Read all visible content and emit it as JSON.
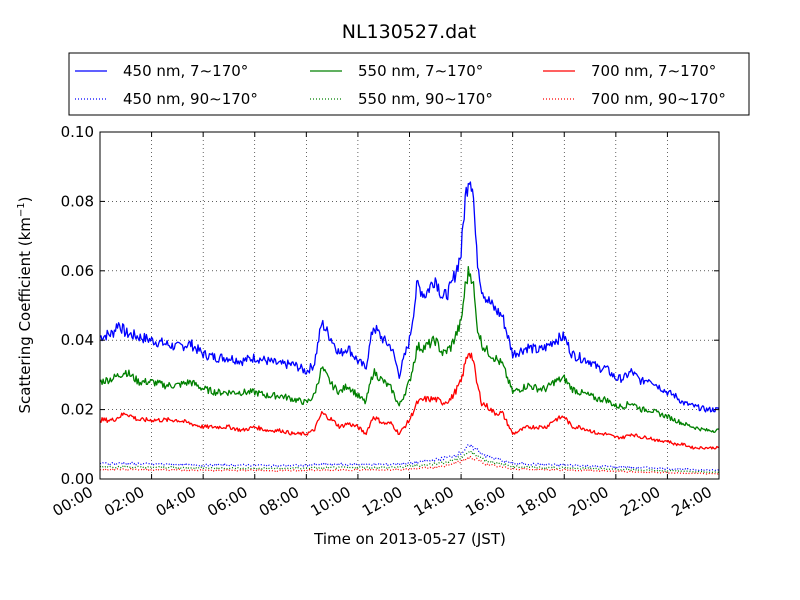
{
  "chart_data": {
    "type": "line",
    "title": "NL130527.dat",
    "xlabel": "Time on 2013-05-27 (JST)",
    "ylabel": "Scattering Coefficient (km",
    "ylabel_sup": "−1",
    "ylabel_close": ")",
    "xlim": [
      0,
      24
    ],
    "ylim": [
      0,
      0.1
    ],
    "x_unit": "hours (JST)",
    "x_ticks": [
      0,
      2,
      4,
      6,
      8,
      10,
      12,
      14,
      16,
      18,
      20,
      22,
      24
    ],
    "x_tick_labels": [
      "00:00",
      "02:00",
      "04:00",
      "06:00",
      "08:00",
      "10:00",
      "12:00",
      "14:00",
      "16:00",
      "18:00",
      "20:00",
      "22:00",
      "24:00"
    ],
    "y_ticks": [
      0,
      0.02,
      0.04,
      0.06,
      0.08,
      0.1
    ],
    "y_tick_labels": [
      "0.00",
      "0.02",
      "0.04",
      "0.06",
      "0.08",
      "0.10"
    ],
    "grid": true,
    "legend_placement": "top, above plot",
    "series": [
      {
        "name": "450 nm, 7∼170°",
        "color": "#0000ff",
        "style": "solid",
        "x": [
          0,
          0.5,
          0.7,
          1,
          1.5,
          2,
          2.5,
          3,
          3.5,
          4,
          4.5,
          5,
          5.5,
          6,
          6.5,
          7,
          7.5,
          8,
          8.3,
          8.6,
          9,
          9.3,
          9.6,
          10,
          10.3,
          10.6,
          11,
          11.3,
          11.6,
          12,
          12.3,
          12.6,
          13,
          13.3,
          13.6,
          14,
          14.15,
          14.3,
          14.45,
          14.6,
          14.8,
          15,
          15.3,
          15.6,
          16,
          16.3,
          16.6,
          17,
          17.3,
          17.6,
          18,
          18.3,
          18.6,
          19,
          19.3,
          19.6,
          20,
          20.3,
          20.6,
          21,
          21.3,
          21.6,
          22,
          22.3,
          22.6,
          23,
          23.5,
          24
        ],
        "y": [
          0.041,
          0.042,
          0.045,
          0.042,
          0.041,
          0.04,
          0.039,
          0.038,
          0.039,
          0.036,
          0.035,
          0.035,
          0.034,
          0.035,
          0.034,
          0.033,
          0.033,
          0.031,
          0.033,
          0.045,
          0.04,
          0.036,
          0.038,
          0.034,
          0.032,
          0.044,
          0.04,
          0.038,
          0.03,
          0.04,
          0.056,
          0.053,
          0.058,
          0.052,
          0.055,
          0.065,
          0.08,
          0.088,
          0.085,
          0.065,
          0.055,
          0.052,
          0.049,
          0.047,
          0.036,
          0.037,
          0.038,
          0.037,
          0.038,
          0.04,
          0.041,
          0.036,
          0.035,
          0.034,
          0.032,
          0.032,
          0.029,
          0.029,
          0.031,
          0.028,
          0.029,
          0.027,
          0.025,
          0.024,
          0.022,
          0.021,
          0.02,
          0.02
        ]
      },
      {
        "name": "550 nm, 7∼170°",
        "color": "#008000",
        "style": "solid",
        "x": [
          0,
          0.5,
          1,
          1.5,
          2,
          2.5,
          3,
          3.5,
          4,
          4.5,
          5,
          5.5,
          6,
          6.5,
          7,
          7.5,
          8,
          8.3,
          8.6,
          9,
          9.3,
          9.6,
          10,
          10.3,
          10.6,
          11,
          11.3,
          11.6,
          12,
          12.3,
          12.6,
          13,
          13.3,
          13.6,
          14,
          14.15,
          14.3,
          14.45,
          14.6,
          14.8,
          15,
          15.3,
          15.6,
          16,
          16.3,
          16.6,
          17,
          17.3,
          17.6,
          18,
          18.3,
          18.6,
          19,
          19.3,
          19.6,
          20,
          20.3,
          20.6,
          21,
          21.3,
          21.6,
          22,
          22.3,
          22.6,
          23,
          23.5,
          24
        ],
        "y": [
          0.028,
          0.029,
          0.031,
          0.028,
          0.028,
          0.027,
          0.027,
          0.028,
          0.026,
          0.025,
          0.025,
          0.025,
          0.025,
          0.024,
          0.024,
          0.023,
          0.022,
          0.024,
          0.032,
          0.027,
          0.025,
          0.027,
          0.024,
          0.022,
          0.031,
          0.028,
          0.026,
          0.021,
          0.028,
          0.038,
          0.038,
          0.04,
          0.036,
          0.038,
          0.045,
          0.055,
          0.06,
          0.058,
          0.045,
          0.039,
          0.037,
          0.035,
          0.033,
          0.025,
          0.026,
          0.027,
          0.026,
          0.026,
          0.028,
          0.029,
          0.026,
          0.025,
          0.024,
          0.023,
          0.023,
          0.021,
          0.021,
          0.022,
          0.02,
          0.02,
          0.019,
          0.018,
          0.017,
          0.016,
          0.015,
          0.014,
          0.014
        ]
      },
      {
        "name": "700 nm, 7∼170°",
        "color": "#ff0000",
        "style": "solid",
        "x": [
          0,
          0.5,
          1,
          1.5,
          2,
          2.5,
          3,
          3.5,
          4,
          4.5,
          5,
          5.5,
          6,
          6.5,
          7,
          7.5,
          8,
          8.3,
          8.6,
          9,
          9.3,
          9.6,
          10,
          10.3,
          10.6,
          11,
          11.3,
          11.6,
          12,
          12.3,
          12.6,
          13,
          13.3,
          13.6,
          14,
          14.15,
          14.3,
          14.45,
          14.6,
          14.8,
          15,
          15.3,
          15.6,
          16,
          16.3,
          16.6,
          17,
          17.3,
          17.6,
          18,
          18.3,
          18.6,
          19,
          19.3,
          19.6,
          20,
          20.3,
          20.6,
          21,
          21.3,
          21.6,
          22,
          22.3,
          22.6,
          23,
          23.5,
          24
        ],
        "y": [
          0.017,
          0.017,
          0.019,
          0.017,
          0.017,
          0.017,
          0.017,
          0.016,
          0.015,
          0.015,
          0.015,
          0.014,
          0.015,
          0.014,
          0.014,
          0.013,
          0.013,
          0.014,
          0.019,
          0.017,
          0.015,
          0.016,
          0.015,
          0.013,
          0.018,
          0.016,
          0.016,
          0.013,
          0.017,
          0.022,
          0.023,
          0.023,
          0.022,
          0.023,
          0.028,
          0.033,
          0.037,
          0.035,
          0.028,
          0.022,
          0.021,
          0.019,
          0.019,
          0.013,
          0.014,
          0.015,
          0.015,
          0.015,
          0.017,
          0.018,
          0.015,
          0.015,
          0.014,
          0.013,
          0.013,
          0.012,
          0.012,
          0.013,
          0.012,
          0.012,
          0.011,
          0.011,
          0.01,
          0.01,
          0.009,
          0.009,
          0.009
        ]
      },
      {
        "name": "450 nm, 90∼170°",
        "color": "#0000ff",
        "style": "dotted",
        "x": [
          0,
          1,
          2,
          3,
          4,
          5,
          6,
          7,
          8,
          9,
          10,
          11,
          12,
          13,
          13.5,
          14,
          14.3,
          14.6,
          15,
          15.5,
          16,
          17,
          18,
          19,
          20,
          21,
          22,
          23,
          24
        ],
        "y": [
          0.0045,
          0.0045,
          0.0043,
          0.0042,
          0.004,
          0.004,
          0.004,
          0.0038,
          0.004,
          0.0042,
          0.0042,
          0.0042,
          0.0045,
          0.0055,
          0.0062,
          0.0075,
          0.0095,
          0.0085,
          0.0065,
          0.0055,
          0.0045,
          0.0042,
          0.004,
          0.0038,
          0.0035,
          0.0033,
          0.003,
          0.0027,
          0.0025
        ]
      },
      {
        "name": "550 nm, 90∼170°",
        "color": "#008000",
        "style": "dotted",
        "x": [
          0,
          1,
          2,
          3,
          4,
          5,
          6,
          7,
          8,
          9,
          10,
          11,
          12,
          13,
          13.5,
          14,
          14.3,
          14.6,
          15,
          15.5,
          16,
          17,
          18,
          19,
          20,
          21,
          22,
          23,
          24
        ],
        "y": [
          0.0035,
          0.0035,
          0.0034,
          0.0033,
          0.0032,
          0.0031,
          0.0031,
          0.003,
          0.0031,
          0.0033,
          0.0033,
          0.0033,
          0.0036,
          0.0044,
          0.005,
          0.0062,
          0.0078,
          0.007,
          0.0052,
          0.0044,
          0.0036,
          0.0033,
          0.0032,
          0.003,
          0.0028,
          0.0026,
          0.0024,
          0.0021,
          0.0019
        ]
      },
      {
        "name": "700 nm, 90∼170°",
        "color": "#ff0000",
        "style": "dotted",
        "x": [
          0,
          1,
          2,
          3,
          4,
          5,
          6,
          7,
          8,
          9,
          10,
          11,
          12,
          13,
          13.5,
          14,
          14.3,
          14.6,
          15,
          15.5,
          16,
          17,
          18,
          19,
          20,
          21,
          22,
          23,
          24
        ],
        "y": [
          0.0028,
          0.0028,
          0.0027,
          0.0026,
          0.0025,
          0.0025,
          0.0025,
          0.0024,
          0.0025,
          0.0026,
          0.0026,
          0.0026,
          0.0028,
          0.0034,
          0.004,
          0.005,
          0.0063,
          0.0056,
          0.0042,
          0.0035,
          0.0029,
          0.0027,
          0.0026,
          0.0024,
          0.0022,
          0.002,
          0.0018,
          0.0016,
          0.0015
        ]
      }
    ]
  }
}
